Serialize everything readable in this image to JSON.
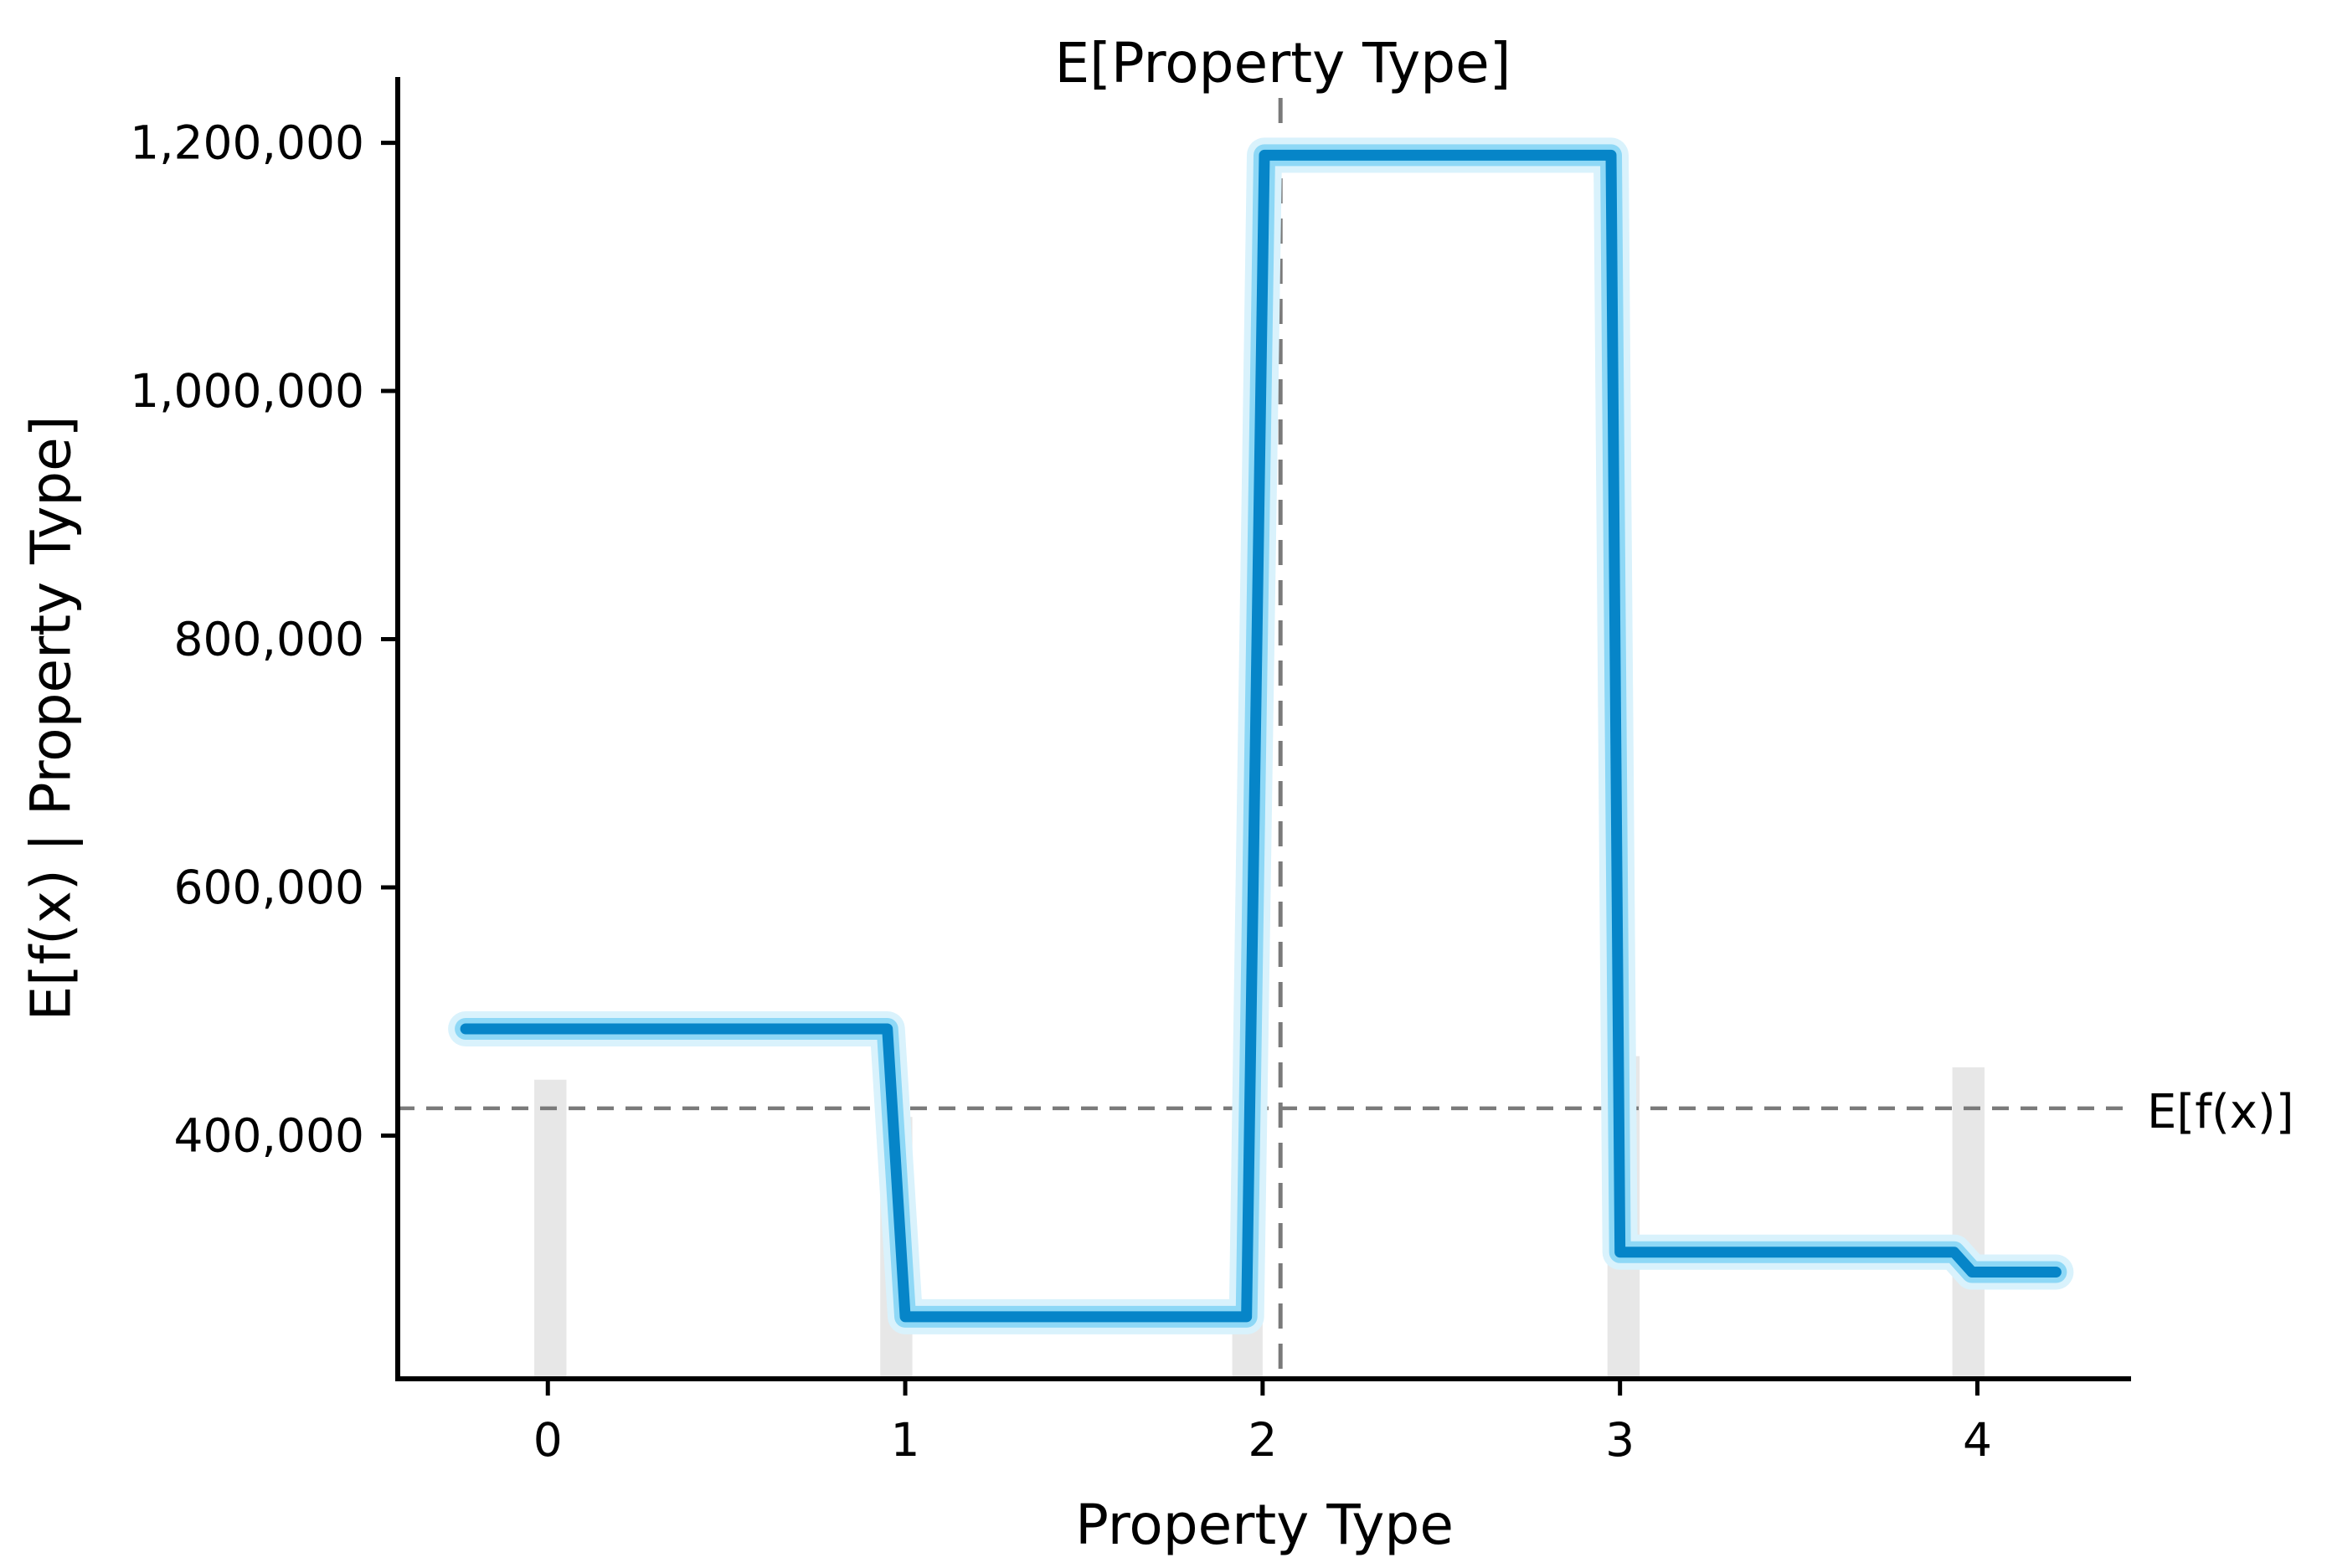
{
  "chart_data": {
    "type": "line",
    "title": "E[Property Type]",
    "xlabel": "Property Type",
    "ylabel": "E[f(x) | Property Type]",
    "xlim": [
      -0.42,
      4.43
    ],
    "ylim": [
      204000,
      1253000
    ],
    "grid": false,
    "legend": null,
    "x_ticks": [
      0,
      1,
      2,
      3,
      4
    ],
    "x_tick_labels": [
      "0",
      "1",
      "2",
      "3",
      "4"
    ],
    "y_ticks": [
      400000,
      600000,
      800000,
      1000000,
      1200000
    ],
    "y_tick_labels": [
      "400,000",
      "600,000",
      "800,000",
      "1,000,000",
      "1,200,000"
    ],
    "expected_value": {
      "label": "E[f(x)]",
      "value": 422000
    },
    "expected_feature": {
      "value": 2.05
    },
    "series": [
      {
        "name": "E[f(x) | Property Type]",
        "color": "#0685c8",
        "points": [
          [
            -0.23,
            486000
          ],
          [
            0.95,
            486000
          ],
          [
            1.0,
            254000
          ],
          [
            1.955,
            254000
          ],
          [
            2.005,
            1190000
          ],
          [
            2.975,
            1190000
          ],
          [
            3.0,
            306000
          ],
          [
            3.935,
            306000
          ],
          [
            3.985,
            290000
          ],
          [
            4.22,
            290000
          ]
        ]
      }
    ],
    "histogram": {
      "color": "#e7e7e7",
      "bars": [
        {
          "x0": -0.038,
          "x1": 0.052,
          "top": 445000
        },
        {
          "x0": 0.93,
          "x1": 1.02,
          "top": 415000
        },
        {
          "x0": 1.915,
          "x1": 2.0,
          "top": 285000
        },
        {
          "x0": 2.965,
          "x1": 3.055,
          "top": 464000
        },
        {
          "x0": 3.93,
          "x1": 4.02,
          "top": 455000
        }
      ]
    },
    "colors": {
      "line_core": "#0685c8",
      "halo_inner": "#8ed8f6",
      "halo_outer": "#d9f2fc",
      "dashed": "#7a7a7a",
      "axis": "#000000",
      "background": "#ffffff"
    }
  }
}
